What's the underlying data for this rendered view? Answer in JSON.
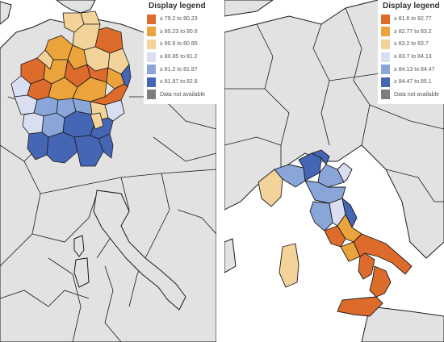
{
  "colors": {
    "sea": "#ffffff",
    "land": "#e2e2e2",
    "border": "#1a1a1a",
    "legend_text": "#555555"
  },
  "maps": [
    {
      "id": "germany",
      "legend_title": "Display legend",
      "legend": [
        {
          "label": "≥ 79.2 to 80.23",
          "color": "#dd6b2c"
        },
        {
          "label": "≥ 80.23 to 80.6",
          "color": "#eaa43b"
        },
        {
          "label": "≥ 80.6 to 80.85",
          "color": "#f3d39a"
        },
        {
          "label": "≥ 80.85 to 81.2",
          "color": "#d9def0"
        },
        {
          "label": "≥ 81.2 to 81.87",
          "color": "#8aa6d8"
        },
        {
          "label": "≥ 81.87 to 82.8",
          "color": "#4566b5"
        },
        {
          "label": "Data not available",
          "color": "#7d7d7d"
        }
      ]
    },
    {
      "id": "italy",
      "legend_title": "Display legend",
      "legend": [
        {
          "label": "≥ 81.6 to 82.77",
          "color": "#dd6b2c"
        },
        {
          "label": "≥ 82.77 to 83.2",
          "color": "#eaa43b"
        },
        {
          "label": "≥ 83.2 to 83.7",
          "color": "#f3d39a"
        },
        {
          "label": "≥ 83.7 to 84.13",
          "color": "#d9def0"
        },
        {
          "label": "≥ 84.13 to 84.47",
          "color": "#8aa6d8"
        },
        {
          "label": "≥ 84.47 to 85.1",
          "color": "#4566b5"
        },
        {
          "label": "Data not available",
          "color": "#7d7d7d"
        }
      ]
    }
  ]
}
